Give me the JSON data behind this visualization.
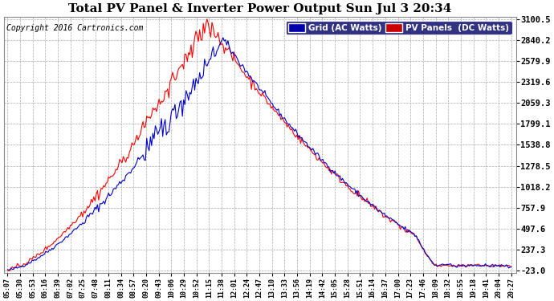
{
  "title": "Total PV Panel & Inverter Power Output Sun Jul 3 20:34",
  "copyright": "Copyright 2016 Cartronics.com",
  "legend_blue": "Grid (AC Watts)",
  "legend_red": "PV Panels  (DC Watts)",
  "bg_color": "#ffffff",
  "plot_bg_color": "#ffffff",
  "grid_color": "#aaaaaa",
  "title_color": "#000000",
  "blue_color": "#0000cc",
  "red_color": "#ff0000",
  "ytick_color": "#000000",
  "xtick_color": "#000000",
  "yticks": [
    -23.0,
    237.3,
    497.6,
    757.9,
    1018.2,
    1278.5,
    1538.8,
    1799.1,
    2059.3,
    2319.6,
    2579.9,
    2840.2,
    3100.5
  ],
  "ylim_min": -23.0,
  "ylim_max": 3100.5,
  "xtick_labels": [
    "05:07",
    "05:30",
    "05:53",
    "06:16",
    "06:39",
    "07:02",
    "07:25",
    "07:48",
    "08:11",
    "08:34",
    "08:57",
    "09:20",
    "09:43",
    "10:06",
    "10:29",
    "10:52",
    "11:15",
    "11:38",
    "12:01",
    "12:24",
    "12:47",
    "13:10",
    "13:33",
    "13:56",
    "14:19",
    "14:42",
    "15:05",
    "15:28",
    "15:51",
    "16:14",
    "16:37",
    "17:00",
    "17:23",
    "17:46",
    "18:09",
    "18:32",
    "18:55",
    "19:18",
    "19:41",
    "20:04",
    "20:27"
  ],
  "n_points": 410,
  "legend_blue_bg": "#0000aa",
  "legend_red_bg": "#cc0000"
}
